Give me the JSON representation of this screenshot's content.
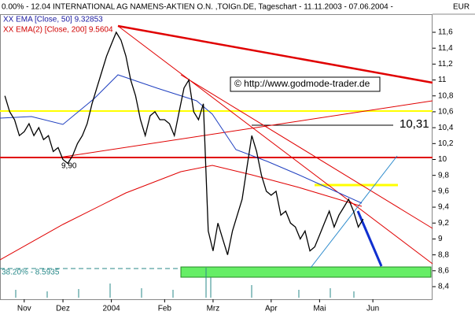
{
  "chart_data": {
    "type": "line",
    "title": "0.00% - 12.04  INTERNATIONAL AG NAMENS-AKTIEN O.N. ,TOIGn.DE, Tageschart - 11.11.2003 - 07.06.2004 -",
    "currency": "EUR",
    "legend": [
      "XX EMA [Close, 50] 9.32853",
      "XX EMA(2) [Close, 200] 9.5604"
    ],
    "annotations": [
      "© http://www.godmode-trader.de",
      "10,31",
      "9,90",
      "38.20% - 8.5935"
    ],
    "color": "#000000",
    "values": [
      10.8,
      10.6,
      10.5,
      10.3,
      10.35,
      10.45,
      10.3,
      10.4,
      10.25,
      10.3,
      10.1,
      10.15,
      10.0,
      9.95,
      10.05,
      10.2,
      10.3,
      10.45,
      10.7,
      10.9,
      11.1,
      11.3,
      11.45,
      11.6,
      11.5,
      11.3,
      11.0,
      10.8,
      10.5,
      10.3,
      10.55,
      10.6,
      10.5,
      10.5,
      10.45,
      10.3,
      10.6,
      10.9,
      11.0,
      10.6,
      10.5,
      10.7,
      9.1,
      8.85,
      9.2,
      9.0,
      8.8,
      9.1,
      9.3,
      9.5,
      9.9,
      10.3,
      10.1,
      9.8,
      9.6,
      9.55,
      9.6,
      9.3,
      9.35,
      9.2,
      9.15,
      9.0,
      9.1,
      8.85,
      8.9,
      9.05,
      9.2,
      9.35,
      9.15,
      9.3,
      9.4,
      9.5,
      9.35,
      9.15,
      9.25
    ],
    "xlim": [
      -1,
      88
    ],
    "xticks": [
      {
        "value": 4,
        "label": "Nov"
      },
      {
        "value": 12,
        "label": "Dez"
      },
      {
        "value": 22,
        "label": "2004"
      },
      {
        "value": 33,
        "label": "Feb"
      },
      {
        "value": 43,
        "label": "Mrz"
      },
      {
        "value": 55,
        "label": "Apr"
      },
      {
        "value": 65,
        "label": "Mai"
      },
      {
        "value": 76,
        "label": "Jun"
      }
    ],
    "ylim": [
      8.4,
      11.6
    ],
    "yticks": [
      {
        "value": 8.4,
        "label": "8,4"
      },
      {
        "value": 8.6,
        "label": "8,6"
      },
      {
        "value": 8.8,
        "label": "8,8"
      },
      9,
      {
        "value": 9.2,
        "label": "9,2"
      },
      {
        "value": 9.4,
        "label": "9,4"
      },
      {
        "value": 9.6,
        "label": "9,6"
      },
      {
        "value": 9.8,
        "label": "9,8"
      },
      10,
      {
        "value": 10.2,
        "label": "10,2"
      },
      {
        "value": 10.4,
        "label": "10,4"
      },
      {
        "value": 10.6,
        "label": "10,6"
      },
      {
        "value": 10.8,
        "label": "10,8"
      },
      11,
      {
        "value": 11.2,
        "label": "11,2"
      },
      {
        "value": 11.4,
        "label": "11,4"
      },
      {
        "value": 11.6,
        "label": "11,6"
      }
    ]
  }
}
